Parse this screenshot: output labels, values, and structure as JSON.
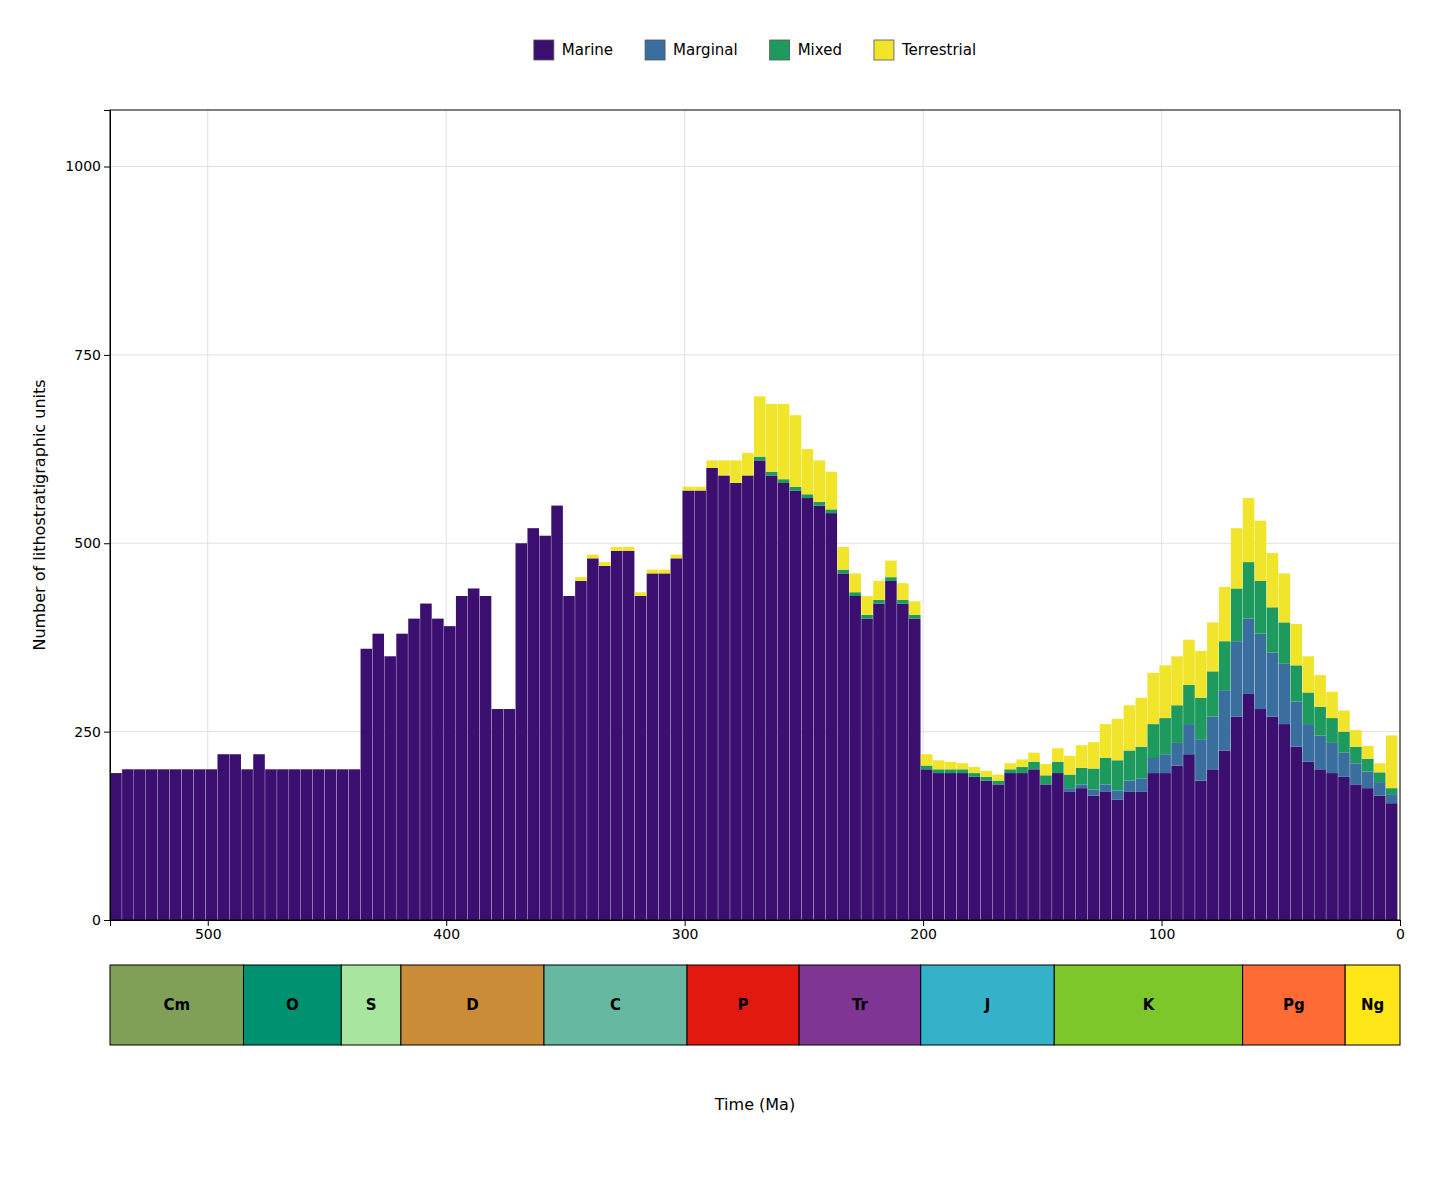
{
  "chart_data": {
    "type": "bar",
    "stacked": true,
    "xlabel": "Time (Ma)",
    "ylabel": "Number of lithostratigraphic units",
    "xlim": [
      541,
      0
    ],
    "xticks": [
      500,
      400,
      300,
      200,
      100,
      0
    ],
    "ylim": [
      0,
      1075
    ],
    "yticks": [
      0,
      250,
      500,
      750,
      1000
    ],
    "grid": true,
    "legend": "top",
    "bins": [
      541,
      536,
      531,
      526,
      521,
      516,
      511,
      506,
      501,
      496,
      491,
      486,
      481,
      476,
      471,
      466,
      461,
      456,
      451,
      446,
      441,
      436,
      431,
      426,
      421,
      416,
      411,
      406,
      401,
      396,
      391,
      386,
      381,
      376,
      371,
      366,
      361,
      356,
      351,
      346,
      341,
      336,
      331,
      326,
      321,
      316,
      311,
      306,
      301,
      296,
      291,
      286,
      281,
      276,
      271,
      266,
      261,
      256,
      251,
      246,
      241,
      236,
      231,
      226,
      221,
      216,
      211,
      206,
      201,
      196,
      191,
      186,
      181,
      176,
      171,
      166,
      161,
      156,
      151,
      146,
      141,
      136,
      131,
      126,
      121,
      116,
      111,
      106,
      101,
      96,
      91,
      86,
      81,
      76,
      71,
      66,
      61,
      56,
      51,
      46,
      41,
      36,
      31,
      26,
      21,
      16,
      11,
      6,
      1
    ],
    "series": [
      {
        "name": "Marine",
        "color": "#3B0F6F",
        "values": [
          195,
          200,
          200,
          200,
          200,
          200,
          200,
          200,
          200,
          220,
          220,
          200,
          220,
          200,
          200,
          200,
          200,
          200,
          200,
          200,
          200,
          360,
          380,
          350,
          380,
          400,
          420,
          400,
          390,
          430,
          440,
          430,
          280,
          280,
          500,
          520,
          510,
          550,
          430,
          450,
          480,
          470,
          490,
          490,
          430,
          460,
          460,
          480,
          570,
          570,
          600,
          590,
          580,
          590,
          610,
          590,
          580,
          570,
          560,
          550,
          540,
          460,
          430,
          400,
          420,
          450,
          420,
          400,
          200,
          195,
          195,
          195,
          190,
          185,
          180,
          195,
          195,
          200,
          180,
          195,
          170,
          175,
          165,
          170,
          160,
          170,
          170,
          195,
          195,
          205,
          220,
          185,
          200,
          225,
          270,
          300,
          280,
          270,
          260,
          230,
          210,
          200,
          195,
          190,
          180,
          175,
          165,
          155
        ]
      },
      {
        "name": "Marginal",
        "color": "#3A6E9E",
        "values": [
          0,
          0,
          0,
          0,
          0,
          0,
          0,
          0,
          0,
          0,
          0,
          0,
          0,
          0,
          0,
          0,
          0,
          0,
          0,
          0,
          0,
          0,
          0,
          0,
          0,
          0,
          0,
          0,
          0,
          0,
          0,
          0,
          0,
          0,
          0,
          0,
          0,
          0,
          0,
          0,
          0,
          0,
          0,
          0,
          0,
          0,
          0,
          0,
          0,
          0,
          0,
          0,
          0,
          0,
          0,
          0,
          0,
          0,
          0,
          0,
          0,
          0,
          0,
          0,
          0,
          0,
          0,
          0,
          0,
          0,
          0,
          0,
          0,
          0,
          0,
          0,
          0,
          0,
          0,
          0,
          5,
          5,
          8,
          10,
          12,
          15,
          18,
          20,
          25,
          30,
          40,
          55,
          70,
          80,
          100,
          100,
          100,
          85,
          80,
          60,
          50,
          45,
          40,
          32,
          28,
          22,
          18,
          12
        ]
      },
      {
        "name": "Mixed",
        "color": "#1F9A5E",
        "values": [
          0,
          0,
          0,
          0,
          0,
          0,
          0,
          0,
          0,
          0,
          0,
          0,
          0,
          0,
          0,
          0,
          0,
          0,
          0,
          0,
          0,
          0,
          0,
          0,
          0,
          0,
          0,
          0,
          0,
          0,
          0,
          0,
          0,
          0,
          0,
          0,
          0,
          0,
          0,
          0,
          0,
          0,
          0,
          0,
          0,
          0,
          0,
          0,
          0,
          0,
          0,
          0,
          0,
          0,
          5,
          5,
          5,
          5,
          5,
          5,
          5,
          5,
          5,
          5,
          5,
          5,
          5,
          5,
          5,
          5,
          5,
          5,
          5,
          5,
          5,
          5,
          8,
          10,
          12,
          15,
          18,
          22,
          28,
          35,
          40,
          40,
          42,
          45,
          48,
          50,
          52,
          55,
          60,
          65,
          70,
          75,
          70,
          60,
          55,
          48,
          42,
          38,
          33,
          28,
          22,
          17,
          13,
          8
        ]
      },
      {
        "name": "Terrestrial",
        "color": "#F0E52A",
        "values": [
          0,
          0,
          0,
          0,
          0,
          0,
          0,
          0,
          0,
          0,
          0,
          0,
          0,
          0,
          0,
          0,
          0,
          0,
          0,
          0,
          0,
          0,
          0,
          0,
          0,
          0,
          0,
          0,
          0,
          0,
          0,
          0,
          0,
          0,
          0,
          0,
          0,
          0,
          0,
          5,
          5,
          5,
          5,
          5,
          5,
          5,
          5,
          5,
          5,
          5,
          10,
          20,
          30,
          30,
          80,
          90,
          100,
          95,
          60,
          55,
          50,
          30,
          25,
          25,
          25,
          22,
          22,
          18,
          15,
          12,
          10,
          8,
          8,
          8,
          8,
          8,
          10,
          12,
          15,
          18,
          25,
          30,
          35,
          45,
          55,
          60,
          65,
          68,
          70,
          65,
          60,
          62,
          65,
          72,
          80,
          85,
          80,
          72,
          65,
          55,
          48,
          42,
          35,
          28,
          22,
          17,
          12,
          70
        ]
      }
    ],
    "periods": [
      {
        "name": "Cm",
        "start": 541,
        "end": 485,
        "color": "#7FA056"
      },
      {
        "name": "O",
        "start": 485,
        "end": 444,
        "color": "#009270"
      },
      {
        "name": "S",
        "start": 444,
        "end": 419,
        "color": "#A8E6A0"
      },
      {
        "name": "D",
        "start": 419,
        "end": 359,
        "color": "#CB8C37"
      },
      {
        "name": "C",
        "start": 359,
        "end": 299,
        "color": "#67B8A1"
      },
      {
        "name": "P",
        "start": 299,
        "end": 252,
        "color": "#E2190E"
      },
      {
        "name": "Tr",
        "start": 252,
        "end": 201,
        "color": "#7E3594"
      },
      {
        "name": "J",
        "start": 201,
        "end": 145,
        "color": "#34B2C9"
      },
      {
        "name": "K",
        "start": 145,
        "end": 66,
        "color": "#7DC72A"
      },
      {
        "name": "Pg",
        "start": 66,
        "end": 23,
        "color": "#FF6B35"
      },
      {
        "name": "Ng",
        "start": 23,
        "end": 0,
        "color": "#FFE619"
      }
    ]
  }
}
